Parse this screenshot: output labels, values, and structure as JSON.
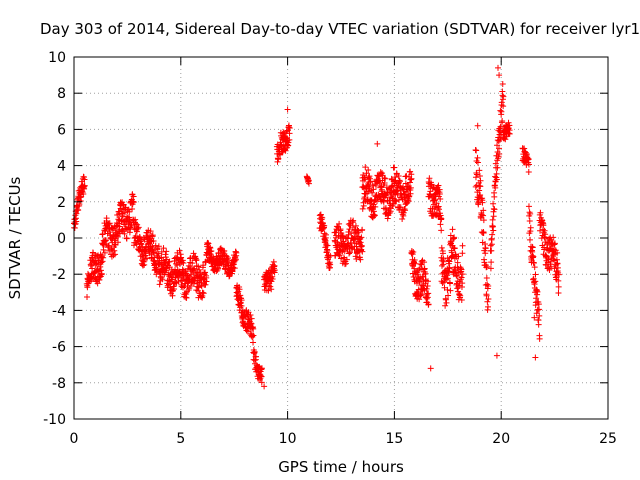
{
  "chart_data": {
    "type": "scatter",
    "title": "Day 303 of 2014, Sidereal Day-to-day VTEC variation (SDTVAR) for receiver lyr1",
    "xlabel": "GPS time / hours",
    "ylabel": "SDTVAR / TECUs",
    "xlim": [
      0,
      25
    ],
    "ylim": [
      -10,
      10
    ],
    "xticks": [
      0,
      5,
      10,
      15,
      20,
      25
    ],
    "yticks": [
      -10,
      -8,
      -6,
      -4,
      -2,
      0,
      2,
      4,
      6,
      8,
      10
    ],
    "grid": true,
    "marker": "+",
    "series": [
      {
        "name": "SDTVAR",
        "color": "#ff0000",
        "segments": [
          {
            "x": [
              0.0,
              0.5
            ],
            "center": [
              0.6,
              3.5
            ],
            "spread": 1.0
          },
          {
            "x": [
              0.6,
              1.3
            ],
            "center": [
              -2.5,
              -1.0
            ],
            "spread": 1.6
          },
          {
            "x": [
              1.3,
              2.8
            ],
            "center": [
              -0.5,
              1.5
            ],
            "spread": 1.8
          },
          {
            "x": [
              2.8,
              4.0
            ],
            "center": [
              0.0,
              -1.0
            ],
            "spread": 1.6
          },
          {
            "x": [
              4.0,
              6.2
            ],
            "center": [
              -1.8,
              -2.2
            ],
            "spread": 1.8
          },
          {
            "x": [
              6.2,
              7.6
            ],
            "center": [
              -1.0,
              -1.5
            ],
            "spread": 1.0
          },
          {
            "x": [
              7.6,
              8.4
            ],
            "center": [
              -3.0,
              -5.5
            ],
            "spread": 1.2
          },
          {
            "x": [
              8.4,
              8.8
            ],
            "center": [
              -6.5,
              -7.6
            ],
            "spread": 0.9
          },
          {
            "x": [
              8.9,
              9.4
            ],
            "center": [
              -3.0,
              -1.5
            ],
            "spread": 1.2
          },
          {
            "x": [
              9.5,
              10.1
            ],
            "center": [
              4.5,
              6.0
            ],
            "spread": 1.2
          },
          {
            "x": [
              10.9,
              11.0
            ],
            "center": [
              3.2,
              3.0
            ],
            "spread": 0.3
          },
          {
            "x": [
              11.5,
              12.0
            ],
            "center": [
              1.0,
              -1.2
            ],
            "spread": 1.0
          },
          {
            "x": [
              12.2,
              13.5
            ],
            "center": [
              -0.5,
              0.0
            ],
            "spread": 1.8
          },
          {
            "x": [
              13.5,
              15.8
            ],
            "center": [
              2.5,
              2.5
            ],
            "spread": 2.0
          },
          {
            "x": [
              15.8,
              16.6
            ],
            "center": [
              -1.5,
              -3.0
            ],
            "spread": 2.0
          },
          {
            "x": [
              16.6,
              17.2
            ],
            "center": [
              3.0,
              1.0
            ],
            "spread": 2.0
          },
          {
            "x": [
              17.2,
              18.2
            ],
            "center": [
              -2.0,
              -1.5
            ],
            "spread": 3.0
          },
          {
            "x": [
              18.8,
              19.4
            ],
            "center": [
              4.5,
              -3.0
            ],
            "spread": 2.5
          },
          {
            "x": [
              19.5,
              20.1
            ],
            "center": [
              -1.0,
              8.5
            ],
            "spread": 1.8
          },
          {
            "x": [
              20.1,
              20.4
            ],
            "center": [
              6.0,
              5.8
            ],
            "spread": 0.8
          },
          {
            "x": [
              21.0,
              21.3
            ],
            "center": [
              4.5,
              4.0
            ],
            "spread": 0.8
          },
          {
            "x": [
              21.3,
              21.8
            ],
            "center": [
              1.5,
              -5.5
            ],
            "spread": 1.8
          },
          {
            "x": [
              21.8,
              22.7
            ],
            "center": [
              0.5,
              -2.0
            ],
            "spread": 1.8
          }
        ],
        "highlights": [
          {
            "x": 19.85,
            "y": 9.4
          },
          {
            "x": 19.9,
            "y": 9.0
          },
          {
            "x": 10.0,
            "y": 7.1
          },
          {
            "x": 8.9,
            "y": -8.2
          },
          {
            "x": 16.7,
            "y": -7.2
          },
          {
            "x": 19.8,
            "y": -6.5
          },
          {
            "x": 21.6,
            "y": -6.6
          },
          {
            "x": 21.55,
            "y": -4.4
          },
          {
            "x": 14.2,
            "y": 5.2
          },
          {
            "x": 18.9,
            "y": 6.2
          }
        ]
      }
    ]
  }
}
